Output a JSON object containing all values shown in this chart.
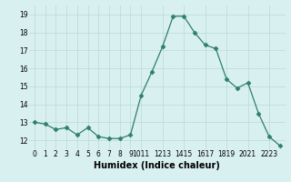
{
  "x": [
    0,
    1,
    2,
    3,
    4,
    5,
    6,
    7,
    8,
    9,
    10,
    11,
    12,
    13,
    14,
    15,
    16,
    17,
    18,
    19,
    20,
    21,
    22,
    23
  ],
  "y": [
    13.0,
    12.9,
    12.6,
    12.7,
    12.3,
    12.7,
    12.2,
    12.1,
    12.1,
    12.3,
    14.5,
    15.8,
    17.2,
    18.9,
    18.9,
    18.0,
    17.3,
    17.1,
    15.4,
    14.9,
    15.2,
    13.5,
    12.2,
    11.7
  ],
  "line_color": "#2e7f6e",
  "marker": "D",
  "marker_size": 2.5,
  "bg_color": "#d9f0f0",
  "grid_color": "#b8d8d8",
  "xlabel": "Humidex (Indice chaleur)",
  "xlim": [
    -0.5,
    23.5
  ],
  "ylim": [
    11.5,
    19.5
  ],
  "yticks": [
    12,
    13,
    14,
    15,
    16,
    17,
    18,
    19
  ],
  "xtick_positions": [
    0,
    1,
    2,
    3,
    4,
    5,
    6,
    7,
    8,
    9,
    10,
    12,
    14,
    16,
    18,
    20,
    22
  ],
  "xtick_labels": [
    "0",
    "1",
    "2",
    "3",
    "4",
    "5",
    "6",
    "7",
    "8",
    "9",
    "1011",
    "1213",
    "1415",
    "1617",
    "1819",
    "2021",
    "2223"
  ],
  "tick_fontsize": 5.5,
  "xlabel_fontsize": 7
}
